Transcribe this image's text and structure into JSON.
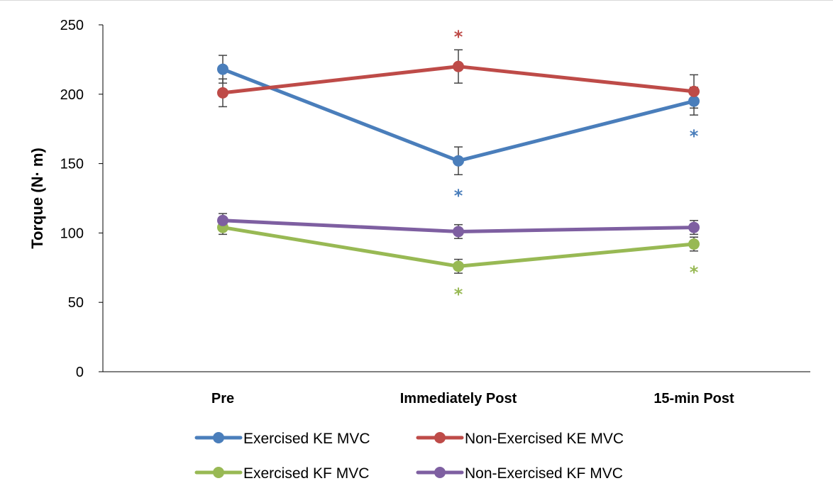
{
  "chart_data": {
    "type": "line",
    "title": "",
    "xlabel": "",
    "ylabel": "Torque (N· m)",
    "categories": [
      "Pre",
      "Immediately Post",
      "15-min Post"
    ],
    "ylim": [
      0,
      250
    ],
    "yticks": [
      0,
      50,
      100,
      150,
      200,
      250
    ],
    "grid": false,
    "legend_position": "bottom",
    "series": [
      {
        "name": "Exercised KE MVC",
        "color": "#4a7ebb",
        "values": [
          218,
          152,
          195
        ],
        "error": [
          10,
          10,
          10
        ],
        "significance": [
          false,
          true,
          true
        ],
        "star_side": "below"
      },
      {
        "name": "Non-Exercised KE MVC",
        "color": "#be4b48",
        "values": [
          201,
          220,
          202
        ],
        "error": [
          10,
          12,
          12
        ],
        "significance": [
          false,
          true,
          false
        ],
        "star_side": "above"
      },
      {
        "name": "Exercised KF MVC",
        "color": "#98b954",
        "values": [
          104,
          76,
          92
        ],
        "error": [
          5,
          5,
          5
        ],
        "significance": [
          false,
          true,
          true
        ],
        "star_side": "below"
      },
      {
        "name": "Non-Exercised KF MVC",
        "color": "#7e5fa1",
        "values": [
          109,
          101,
          104
        ],
        "error": [
          5,
          5,
          5
        ],
        "significance": [
          false,
          false,
          false
        ],
        "star_side": "below"
      }
    ],
    "significance_symbol": "*"
  }
}
